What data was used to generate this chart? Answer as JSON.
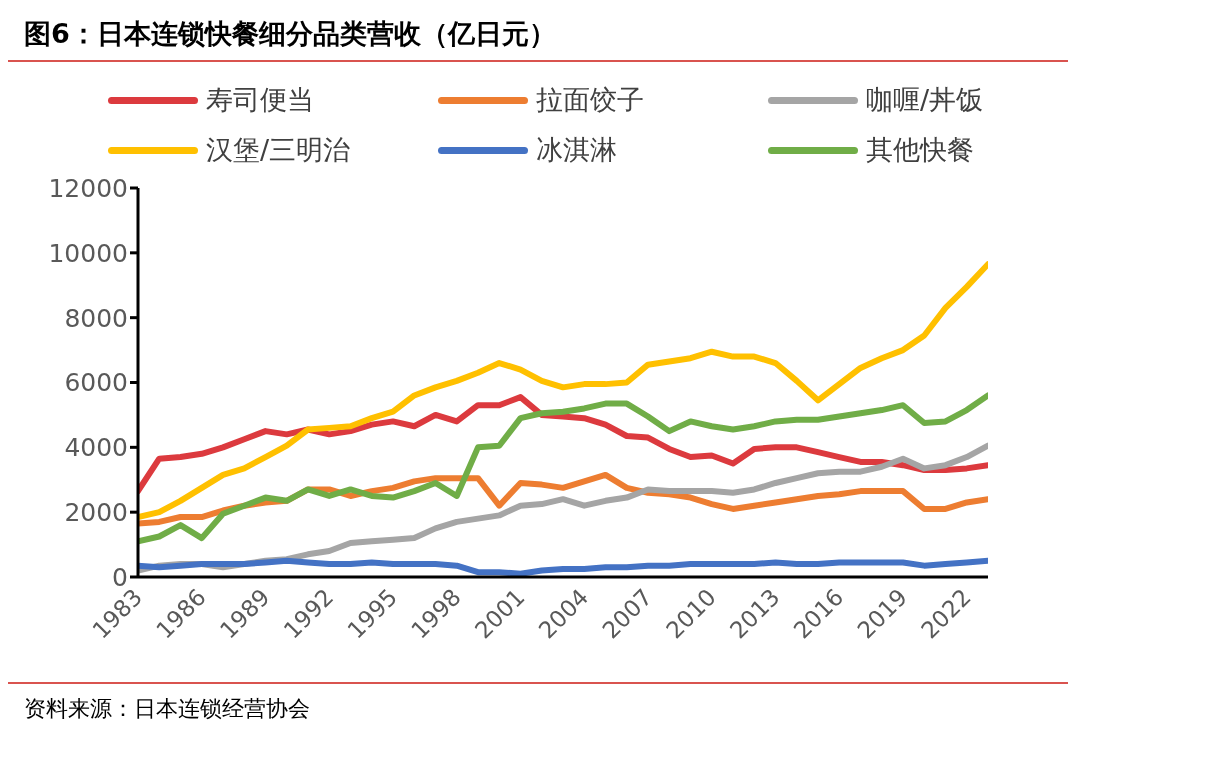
{
  "chart_data": {
    "type": "line",
    "title": "图6：日本连锁快餐细分品类营收（亿日元）",
    "annotations": [
      "资料来源：日本连锁经营协会"
    ],
    "x": [
      1983,
      1984,
      1985,
      1986,
      1987,
      1988,
      1989,
      1990,
      1991,
      1992,
      1993,
      1994,
      1995,
      1996,
      1997,
      1998,
      1999,
      2000,
      2001,
      2002,
      2003,
      2004,
      2005,
      2006,
      2007,
      2008,
      2009,
      2010,
      2011,
      2012,
      2013,
      2014,
      2015,
      2016,
      2017,
      2018,
      2019,
      2020,
      2021,
      2022,
      2023
    ],
    "xlim": [
      1983,
      2023
    ],
    "xticks": [
      1983,
      1986,
      1989,
      1992,
      1995,
      1998,
      2001,
      2004,
      2007,
      2010,
      2013,
      2016,
      2019,
      2022
    ],
    "ylim": [
      0,
      12000
    ],
    "yticks": [
      0,
      2000,
      4000,
      6000,
      8000,
      10000,
      12000
    ],
    "grid": false,
    "legend": "top",
    "marker": "none",
    "line_style": "solid",
    "series": [
      {
        "name": "寿司便当",
        "color": "#dc3a3e",
        "values": [
          2650,
          3650,
          3700,
          3800,
          4000,
          4250,
          4500,
          4400,
          4550,
          4400,
          4500,
          4700,
          4800,
          4650,
          5000,
          4800,
          5300,
          5300,
          5550,
          5000,
          4950,
          4900,
          4700,
          4350,
          4300,
          3950,
          3700,
          3750,
          3500,
          3950,
          4000,
          4000,
          3850,
          3700,
          3550,
          3550,
          3450,
          3300,
          3300,
          3350,
          3450
        ]
      },
      {
        "name": "拉面饺子",
        "color": "#ed7d31",
        "values": [
          1650,
          1700,
          1850,
          1850,
          2050,
          2200,
          2300,
          2350,
          2700,
          2700,
          2500,
          2650,
          2750,
          2950,
          3050,
          3050,
          3050,
          2200,
          2900,
          2850,
          2750,
          2950,
          3150,
          2750,
          2600,
          2550,
          2450,
          2250,
          2100,
          2200,
          2300,
          2400,
          2500,
          2550,
          2650,
          2650,
          2650,
          2100,
          2100,
          2300,
          2400
        ]
      },
      {
        "name": "咖喱/丼饭",
        "color": "#a5a5a5",
        "values": [
          200,
          350,
          400,
          400,
          300,
          400,
          500,
          550,
          700,
          800,
          1050,
          1100,
          1150,
          1200,
          1500,
          1700,
          1800,
          1900,
          2200,
          2250,
          2400,
          2200,
          2350,
          2450,
          2700,
          2650,
          2650,
          2650,
          2600,
          2700,
          2900,
          3050,
          3200,
          3250,
          3250,
          3400,
          3650,
          3350,
          3450,
          3700,
          4050
        ]
      },
      {
        "name": "汉堡/三明治",
        "color": "#ffc000",
        "values": [
          1850,
          2000,
          2350,
          2750,
          3150,
          3350,
          3700,
          4050,
          4550,
          4600,
          4650,
          4900,
          5100,
          5600,
          5850,
          6050,
          6300,
          6600,
          6400,
          6050,
          5850,
          5950,
          5950,
          6000,
          6550,
          6650,
          6750,
          6950,
          6800,
          6800,
          6600,
          6050,
          5450,
          5950,
          6450,
          6750,
          7000,
          7450,
          8300,
          8950,
          9650
        ]
      },
      {
        "name": "冰淇淋",
        "color": "#4472c4",
        "values": [
          350,
          300,
          350,
          400,
          400,
          400,
          450,
          500,
          450,
          400,
          400,
          450,
          400,
          400,
          400,
          350,
          150,
          150,
          100,
          200,
          250,
          250,
          300,
          300,
          350,
          350,
          400,
          400,
          400,
          400,
          450,
          400,
          400,
          450,
          450,
          450,
          450,
          350,
          400,
          450,
          500
        ]
      },
      {
        "name": "其他快餐",
        "color": "#70ad47",
        "values": [
          1100,
          1250,
          1600,
          1200,
          1950,
          2200,
          2450,
          2350,
          2700,
          2500,
          2700,
          2500,
          2450,
          2650,
          2900,
          2500,
          4000,
          4050,
          4900,
          5050,
          5100,
          5200,
          5350,
          5350,
          4950,
          4500,
          4800,
          4650,
          4550,
          4650,
          4800,
          4850,
          4850,
          4950,
          5050,
          5150,
          5300,
          4750,
          4800,
          5150,
          5600
        ]
      }
    ]
  }
}
